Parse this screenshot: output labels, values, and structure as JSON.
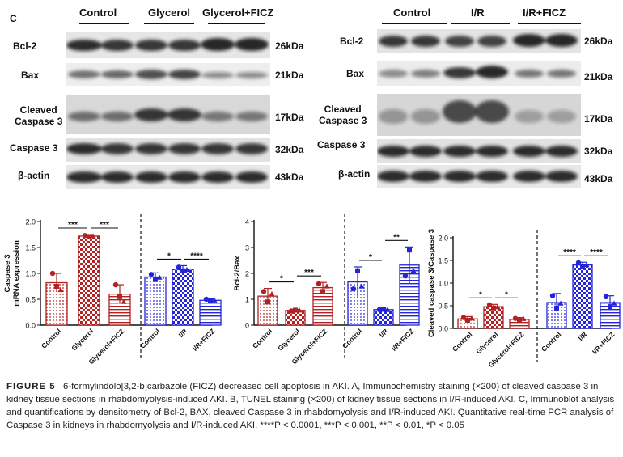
{
  "panel_letter": "C",
  "blots": {
    "left": {
      "groups": [
        "Control",
        "Glycerol",
        "Glycerol+FICZ"
      ],
      "rows": [
        {
          "label": "Bcl-2",
          "kda": "26kDa"
        },
        {
          "label": "Bax",
          "kda": "21kDa"
        },
        {
          "label": "Cleaved\nCaspase 3",
          "kda": "17kDa"
        },
        {
          "label": "Caspase 3",
          "kda": "32kDa"
        },
        {
          "label": "β-actin",
          "kda": "43kDa"
        }
      ]
    },
    "right": {
      "groups": [
        "Control",
        "I/R",
        "I/R+FICZ"
      ],
      "rows": [
        {
          "label": "Bcl-2",
          "kda": "26kDa"
        },
        {
          "label": "Bax",
          "kda": "21kDa"
        },
        {
          "label": "Cleaved\nCaspase 3",
          "kda": "17kDa"
        },
        {
          "label": "Caspase 3",
          "kda": "32kDa"
        },
        {
          "label": "β-actin",
          "kda": "43kDa"
        }
      ]
    }
  },
  "chart_data": [
    {
      "type": "bar",
      "ylabel": "Caspase 3\nmRNA expression",
      "ylim": [
        0,
        2.0
      ],
      "yticks": [
        "0.0",
        "0.5",
        "1.0",
        "1.5",
        "2.0"
      ],
      "categories": [
        "Control",
        "Glycerol",
        "Glycerol+FICZ",
        "Control",
        "I/R",
        "I/R+FICZ"
      ],
      "values": [
        0.82,
        1.72,
        0.6,
        0.93,
        1.08,
        0.48
      ],
      "errors": [
        0.18,
        0.03,
        0.18,
        0.08,
        0.07,
        0.03
      ],
      "points": [
        [
          1.0,
          0.75,
          0.68
        ],
        [
          1.73,
          1.71,
          1.72
        ],
        [
          0.78,
          0.55,
          0.45
        ],
        [
          0.98,
          0.88,
          0.92
        ],
        [
          1.12,
          1.05,
          1.07
        ],
        [
          0.5,
          0.47,
          0.48
        ]
      ],
      "colors": [
        "#b22222",
        "#b22222",
        "#b22222",
        "#2525d8",
        "#2525d8",
        "#2525d8"
      ],
      "patterns": [
        "dots",
        "check",
        "hstripe",
        "dots",
        "check",
        "hstripe"
      ],
      "significance": [
        {
          "from": 0,
          "to": 1,
          "label": "***"
        },
        {
          "from": 1,
          "to": 2,
          "label": "***"
        },
        {
          "from": 3,
          "to": 4,
          "label": "*"
        },
        {
          "from": 4,
          "to": 5,
          "label": "****"
        }
      ]
    },
    {
      "type": "bar",
      "ylabel": "Bcl-2/Bax",
      "ylim": [
        0,
        4
      ],
      "yticks": [
        "0",
        "1",
        "2",
        "3",
        "4"
      ],
      "categories": [
        "Control",
        "Glycerol",
        "Glycerol+FICZ",
        "Control",
        "I/R",
        "I/R+FICZ"
      ],
      "values": [
        1.12,
        0.57,
        1.45,
        1.67,
        0.6,
        2.32
      ],
      "errors": [
        0.3,
        0.04,
        0.2,
        0.58,
        0.02,
        0.7
      ],
      "points": [
        [
          1.3,
          0.9,
          1.2
        ],
        [
          0.55,
          0.58,
          0.57
        ],
        [
          1.6,
          1.3,
          1.5
        ],
        [
          1.4,
          2.1,
          1.5
        ],
        [
          0.6,
          0.61,
          0.59
        ],
        [
          1.9,
          2.9,
          2.1
        ]
      ],
      "colors": [
        "#b22222",
        "#b22222",
        "#b22222",
        "#2525d8",
        "#2525d8",
        "#2525d8"
      ],
      "patterns": [
        "dots",
        "check",
        "hstripe",
        "dots",
        "check",
        "hstripe"
      ],
      "significance": [
        {
          "from": 0,
          "to": 1,
          "label": "*"
        },
        {
          "from": 1,
          "to": 2,
          "label": "***"
        },
        {
          "from": 3,
          "to": 4,
          "label": "*"
        },
        {
          "from": 4,
          "to": 5,
          "label": "**"
        }
      ]
    },
    {
      "type": "bar",
      "ylabel": "Cleaved caspase 3/Caspase 3",
      "ylim": [
        0,
        2.0
      ],
      "yticks": [
        "0.0",
        "0.5",
        "1.0",
        "1.5",
        "2.0"
      ],
      "categories": [
        "Control",
        "Glycerol",
        "Glycerol+FICZ",
        "Control",
        "I/R",
        "I/R+FICZ"
      ],
      "values": [
        0.21,
        0.48,
        0.2,
        0.57,
        1.4,
        0.57
      ],
      "errors": [
        0.05,
        0.05,
        0.04,
        0.2,
        0.06,
        0.15
      ],
      "points": [
        [
          0.24,
          0.18,
          0.22
        ],
        [
          0.52,
          0.45,
          0.47
        ],
        [
          0.22,
          0.18,
          0.21
        ],
        [
          0.72,
          0.45,
          0.55
        ],
        [
          1.45,
          1.36,
          1.4
        ],
        [
          0.7,
          0.48,
          0.55
        ]
      ],
      "colors": [
        "#b22222",
        "#b22222",
        "#b22222",
        "#2525d8",
        "#2525d8",
        "#2525d8"
      ],
      "patterns": [
        "dots",
        "check",
        "hstripe",
        "dots",
        "check",
        "hstripe"
      ],
      "significance": [
        {
          "from": 0,
          "to": 1,
          "label": "*"
        },
        {
          "from": 1,
          "to": 2,
          "label": "*"
        },
        {
          "from": 3,
          "to": 4,
          "label": "****"
        },
        {
          "from": 4,
          "to": 5,
          "label": "****"
        }
      ]
    }
  ],
  "caption": {
    "figure_label": "FIGURE 5",
    "text": "6-formylindolo[3,2-b]carbazole (FICZ) decreased cell apoptosis in AKI. A, Immunochemistry staining (×200) of cleaved caspase 3 in kidney tissue sections in rhabdomyolysis-induced AKI. B, TUNEL staining (×200) of kidney tissue sections in I/R-induced AKI. C, Immunoblot analysis and quantifications by densitometry of Bcl-2, BAX, cleaved Caspase 3 in rhabdomyolysis and I/R-induced AKI. Quantitative real-time PCR analysis of Caspase 3 in kidneys in rhabdomyolysis and I/R-induced AKI. ****P < 0.0001, ***P < 0.001, **P < 0.01, *P < 0.05"
  }
}
